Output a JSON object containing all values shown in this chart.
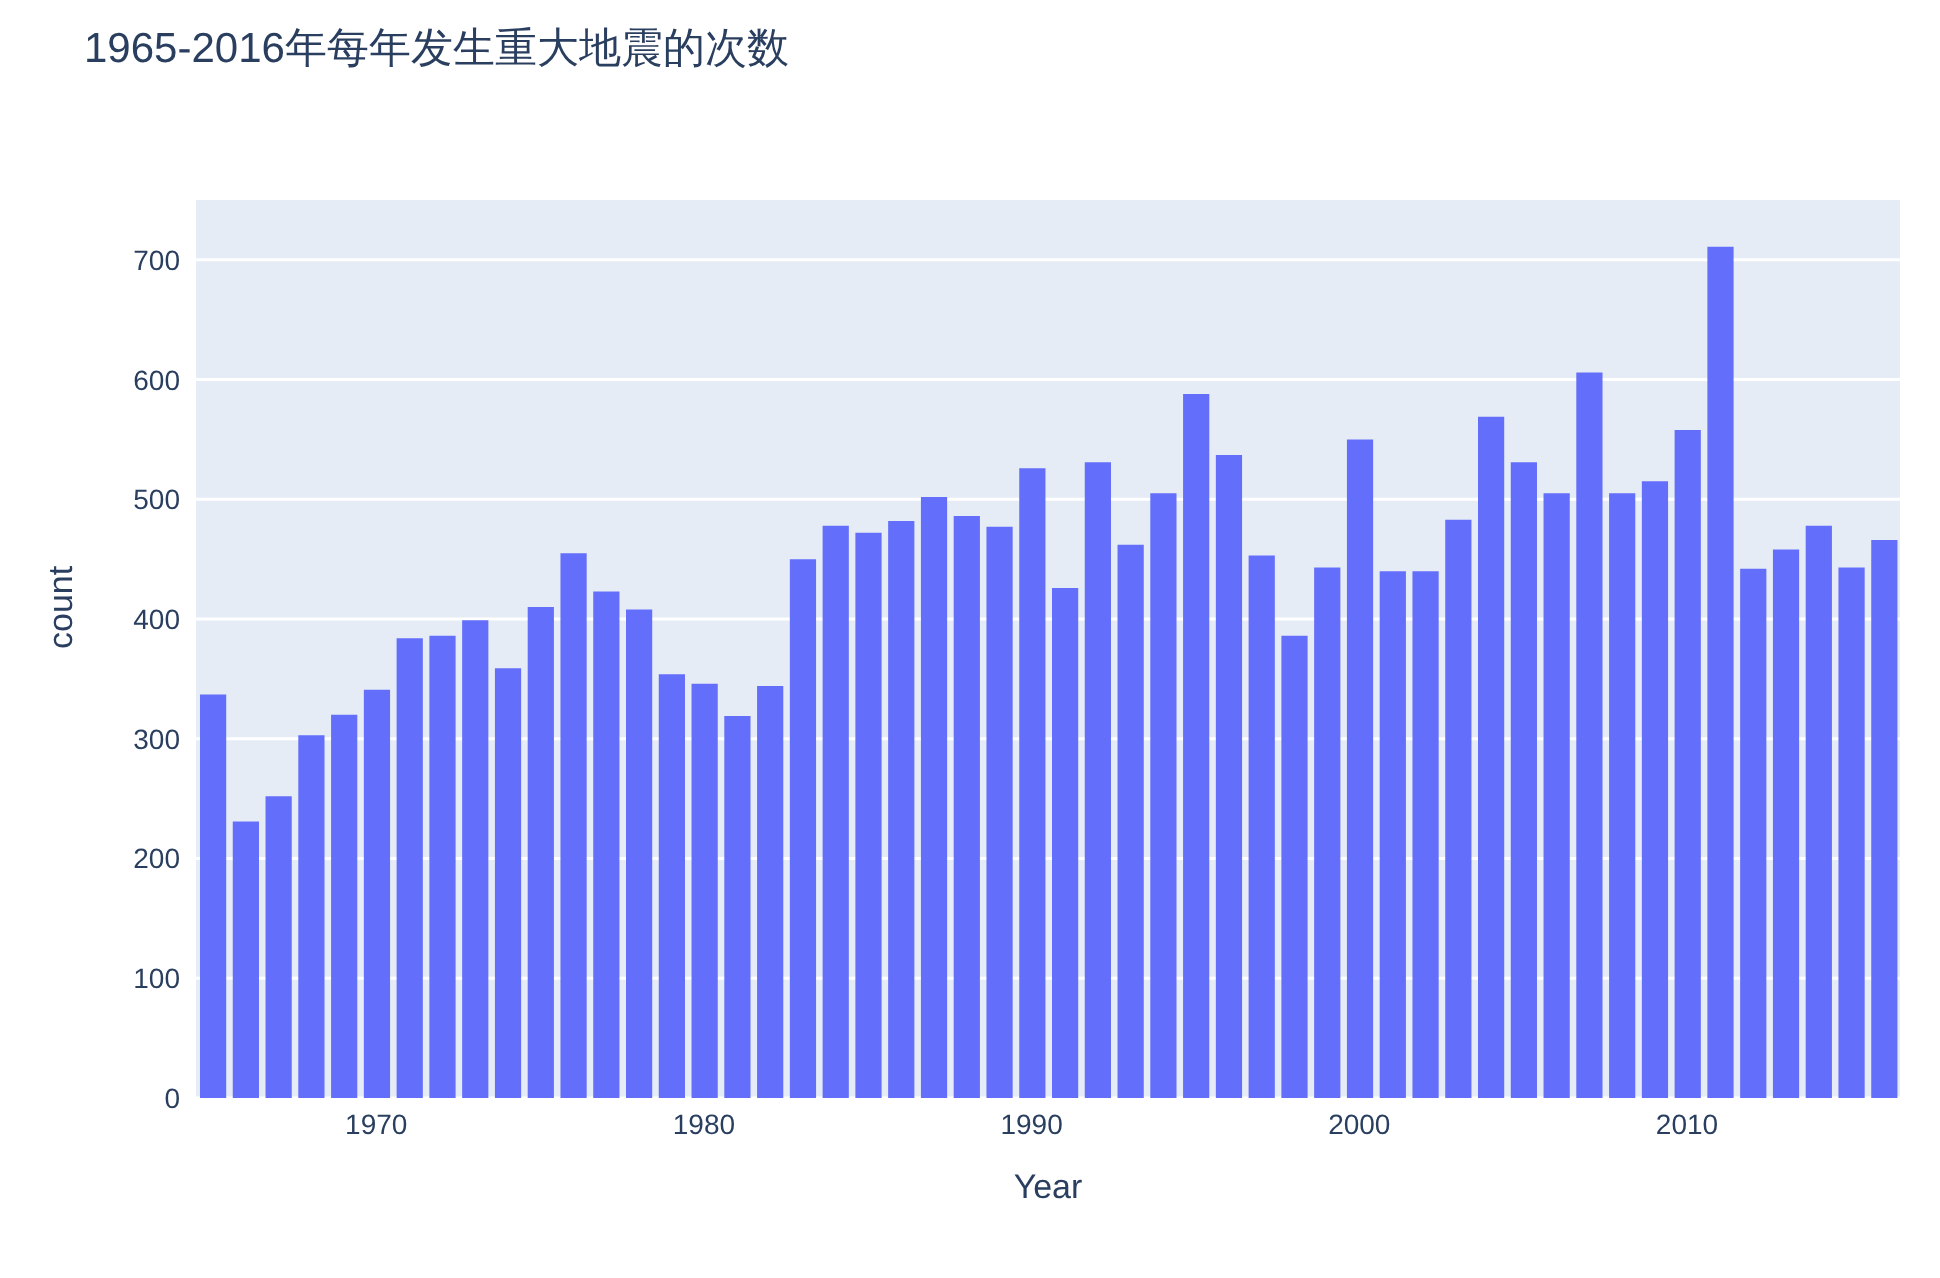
{
  "chart_data": {
    "type": "bar",
    "title": "1965-2016年每年发生重大地震的次数",
    "xlabel": "Year",
    "ylabel": "count",
    "x": [
      1965,
      1966,
      1967,
      1968,
      1969,
      1970,
      1971,
      1972,
      1973,
      1974,
      1975,
      1976,
      1977,
      1978,
      1979,
      1980,
      1981,
      1982,
      1983,
      1984,
      1985,
      1986,
      1987,
      1988,
      1989,
      1990,
      1991,
      1992,
      1993,
      1994,
      1995,
      1996,
      1997,
      1998,
      1999,
      2000,
      2001,
      2002,
      2003,
      2004,
      2005,
      2006,
      2007,
      2008,
      2009,
      2010,
      2011,
      2012,
      2013,
      2014,
      2015,
      2016
    ],
    "values": [
      337,
      231,
      252,
      303,
      320,
      341,
      384,
      386,
      399,
      359,
      410,
      455,
      423,
      408,
      354,
      346,
      319,
      344,
      450,
      478,
      472,
      482,
      502,
      486,
      477,
      526,
      426,
      531,
      462,
      505,
      588,
      537,
      453,
      386,
      443,
      550,
      440,
      440,
      483,
      569,
      531,
      505,
      606,
      505,
      515,
      558,
      711,
      442,
      458,
      478,
      443,
      466
    ],
    "color": "#636efa",
    "xlim": [
      1964.5,
      2016.5
    ],
    "xticks": [
      1970,
      1980,
      1990,
      2000,
      2010
    ],
    "ylim": [
      0,
      750
    ],
    "yticks": [
      0,
      100,
      200,
      300,
      400,
      500,
      600,
      700
    ],
    "grid": "y"
  }
}
